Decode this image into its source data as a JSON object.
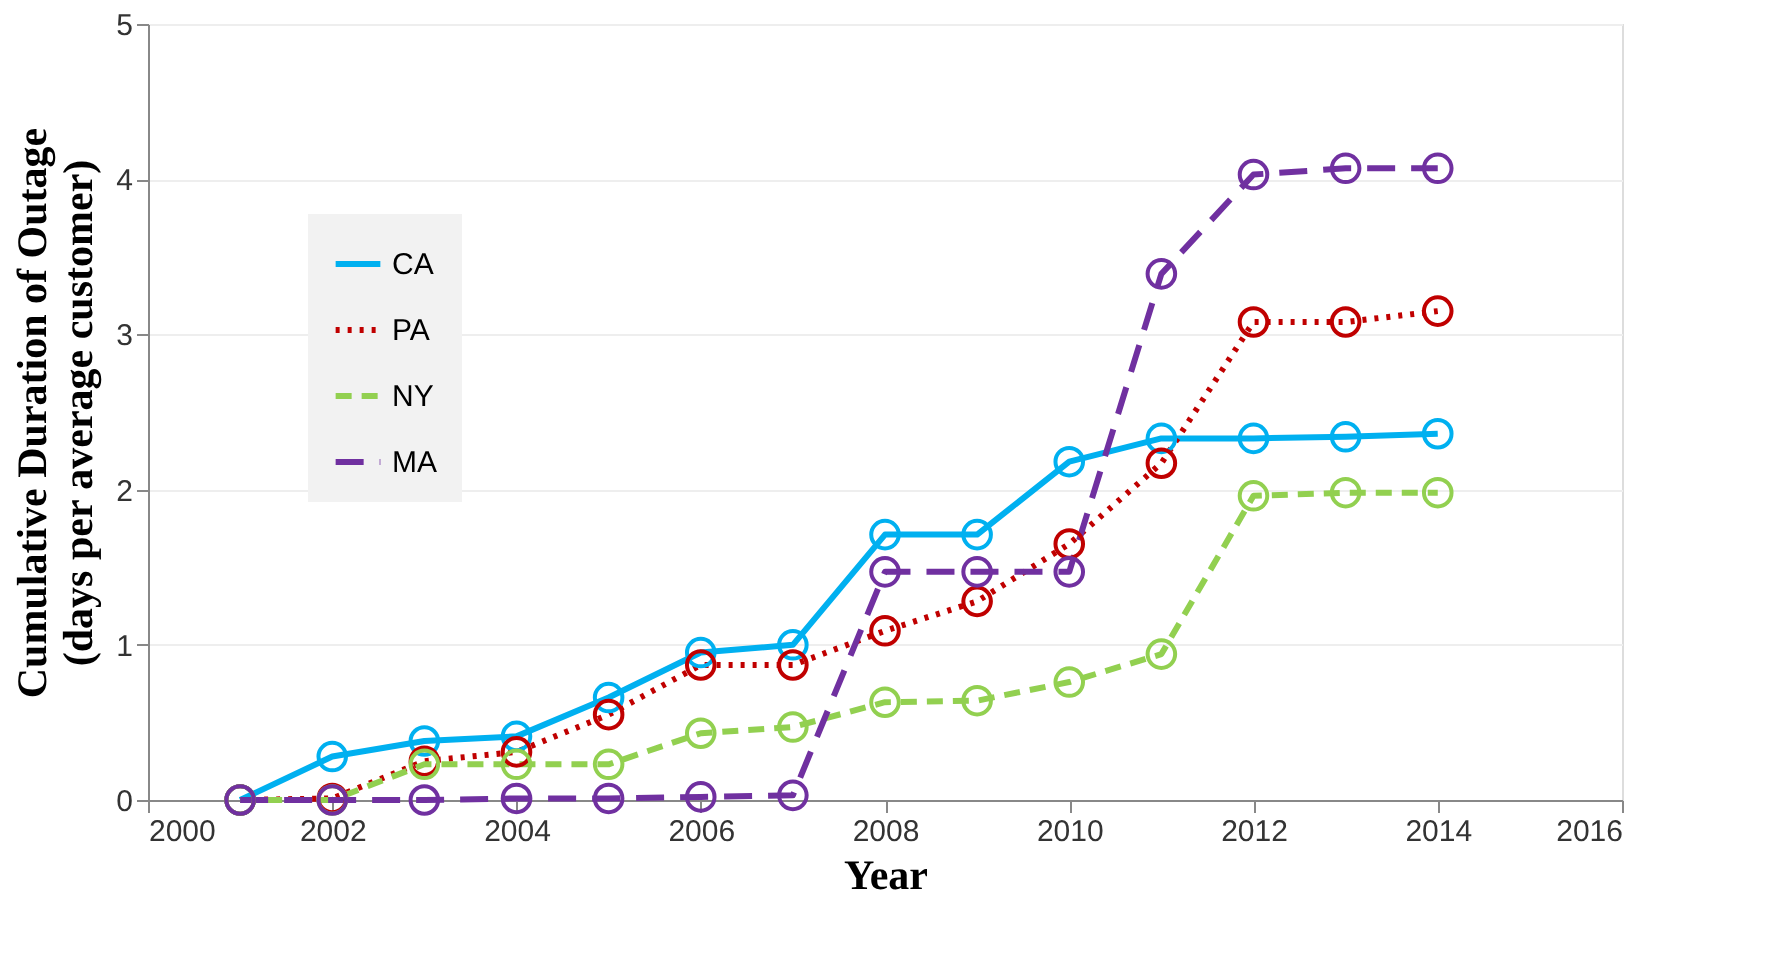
{
  "chart_data": {
    "type": "line",
    "xlabel": "Year",
    "ylabel": "Cumulative Duration of Outage\n(days per average customer)",
    "x": [
      2001,
      2002,
      2003,
      2004,
      2005,
      2006,
      2007,
      2008,
      2009,
      2010,
      2011,
      2012,
      2013,
      2014
    ],
    "xlim": [
      2000,
      2016
    ],
    "xticks": [
      2000,
      2002,
      2004,
      2006,
      2008,
      2010,
      2012,
      2014,
      2016
    ],
    "ylim": [
      0,
      5
    ],
    "yticks": [
      0,
      1,
      2,
      3,
      4,
      5
    ],
    "grid": "y",
    "legend": "top left",
    "marker": "circle",
    "series": [
      {
        "name": "CA",
        "color": "#00b0f0",
        "line_style": "solid",
        "values": [
          0,
          0.28,
          0.38,
          0.41,
          0.66,
          0.95,
          1.0,
          1.71,
          1.71,
          2.18,
          2.33,
          2.33,
          2.34,
          2.36
        ]
      },
      {
        "name": "PA",
        "color": "#c00000",
        "line_style": "dotted",
        "values": [
          0,
          0.01,
          0.25,
          0.31,
          0.55,
          0.87,
          0.87,
          1.09,
          1.28,
          1.65,
          2.17,
          3.08,
          3.08,
          3.15
        ]
      },
      {
        "name": "NY",
        "color": "#92d050",
        "line_style": "dashed",
        "values": [
          0,
          0,
          0.23,
          0.23,
          0.23,
          0.43,
          0.47,
          0.63,
          0.64,
          0.76,
          0.94,
          1.96,
          1.98,
          1.98
        ]
      },
      {
        "name": "MA",
        "color": "#7030a0",
        "line_style": "longdash",
        "values": [
          0,
          0,
          0,
          0.01,
          0.01,
          0.02,
          0.03,
          1.47,
          1.47,
          1.47,
          3.39,
          4.03,
          4.07,
          4.07
        ]
      }
    ]
  }
}
